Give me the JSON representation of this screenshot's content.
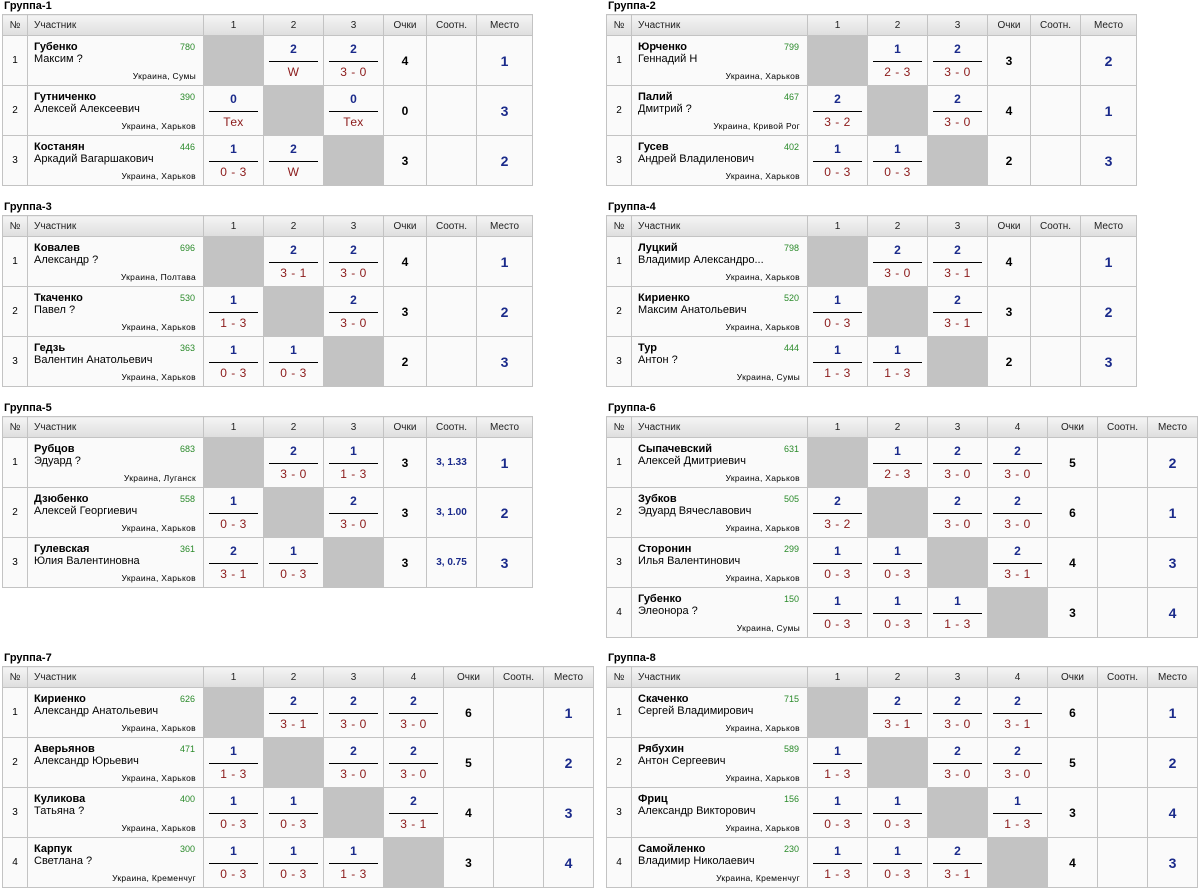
{
  "headers": {
    "num": "№",
    "participant": "Участник",
    "points": "Очки",
    "ratio": "Соотн.",
    "place": "Место"
  },
  "groups": [
    {
      "title": "Группа-1",
      "cols": [
        "1",
        "2",
        "3"
      ],
      "rows": [
        {
          "num": "1",
          "last": "Губенко",
          "first": "Максим ?",
          "rating": "780",
          "city": "Украина, Сумы",
          "results": [
            null,
            {
              "t": "2",
              "b": "W"
            },
            {
              "t": "2",
              "b": "3 - 0"
            }
          ],
          "points": "4",
          "ratio": "",
          "place": "1"
        },
        {
          "num": "2",
          "last": "Гутниченко",
          "first": "Алексей Алексеевич",
          "rating": "390",
          "city": "Украина, Харьков",
          "results": [
            {
              "t": "0",
              "b": "Тех"
            },
            null,
            {
              "t": "0",
              "b": "Тех"
            }
          ],
          "points": "0",
          "ratio": "",
          "place": "3"
        },
        {
          "num": "3",
          "last": "Костанян",
          "first": "Аркадий Вагаршакович",
          "rating": "446",
          "city": "Украина, Харьков",
          "results": [
            {
              "t": "1",
              "b": "0 - 3"
            },
            {
              "t": "2",
              "b": "W"
            },
            null
          ],
          "points": "3",
          "ratio": "",
          "place": "2"
        }
      ]
    },
    {
      "title": "Группа-2",
      "cols": [
        "1",
        "2",
        "3"
      ],
      "rows": [
        {
          "num": "1",
          "last": "Юрченко",
          "first": "Геннадий Н",
          "rating": "799",
          "city": "Украина, Харьков",
          "results": [
            null,
            {
              "t": "1",
              "b": "2 - 3"
            },
            {
              "t": "2",
              "b": "3 - 0"
            }
          ],
          "points": "3",
          "ratio": "",
          "place": "2"
        },
        {
          "num": "2",
          "last": "Палий",
          "first": "Дмитрий ?",
          "rating": "467",
          "city": "Украина, Кривой Рог",
          "results": [
            {
              "t": "2",
              "b": "3 - 2"
            },
            null,
            {
              "t": "2",
              "b": "3 - 0"
            }
          ],
          "points": "4",
          "ratio": "",
          "place": "1"
        },
        {
          "num": "3",
          "last": "Гусев",
          "first": "Андрей Владиленович",
          "rating": "402",
          "city": "Украина, Харьков",
          "results": [
            {
              "t": "1",
              "b": "0 - 3"
            },
            {
              "t": "1",
              "b": "0 - 3"
            },
            null
          ],
          "points": "2",
          "ratio": "",
          "place": "3"
        }
      ]
    },
    {
      "title": "Группа-3",
      "cols": [
        "1",
        "2",
        "3"
      ],
      "rows": [
        {
          "num": "1",
          "last": "Ковалев",
          "first": "Александр ?",
          "rating": "696",
          "city": "Украина, Полтава",
          "results": [
            null,
            {
              "t": "2",
              "b": "3 - 1"
            },
            {
              "t": "2",
              "b": "3 - 0"
            }
          ],
          "points": "4",
          "ratio": "",
          "place": "1"
        },
        {
          "num": "2",
          "last": "Ткаченко",
          "first": "Павел ?",
          "rating": "530",
          "city": "Украина, Харьков",
          "results": [
            {
              "t": "1",
              "b": "1 - 3"
            },
            null,
            {
              "t": "2",
              "b": "3 - 0"
            }
          ],
          "points": "3",
          "ratio": "",
          "place": "2"
        },
        {
          "num": "3",
          "last": "Гедзь",
          "first": "Валентин Анатольевич",
          "rating": "363",
          "city": "Украина, Харьков",
          "results": [
            {
              "t": "1",
              "b": "0 - 3"
            },
            {
              "t": "1",
              "b": "0 - 3"
            },
            null
          ],
          "points": "2",
          "ratio": "",
          "place": "3"
        }
      ]
    },
    {
      "title": "Группа-4",
      "cols": [
        "1",
        "2",
        "3"
      ],
      "rows": [
        {
          "num": "1",
          "last": "Луцкий",
          "first": "Владимир Александро...",
          "rating": "798",
          "city": "Украина, Харьков",
          "results": [
            null,
            {
              "t": "2",
              "b": "3 - 0"
            },
            {
              "t": "2",
              "b": "3 - 1"
            }
          ],
          "points": "4",
          "ratio": "",
          "place": "1"
        },
        {
          "num": "2",
          "last": "Кириенко",
          "first": "Максим Анатольевич",
          "rating": "520",
          "city": "Украина, Харьков",
          "results": [
            {
              "t": "1",
              "b": "0 - 3"
            },
            null,
            {
              "t": "2",
              "b": "3 - 1"
            }
          ],
          "points": "3",
          "ratio": "",
          "place": "2"
        },
        {
          "num": "3",
          "last": "Тур",
          "first": "Антон ?",
          "rating": "444",
          "city": "Украина, Сумы",
          "results": [
            {
              "t": "1",
              "b": "1 - 3"
            },
            {
              "t": "1",
              "b": "1 - 3"
            },
            null
          ],
          "points": "2",
          "ratio": "",
          "place": "3"
        }
      ]
    },
    {
      "title": "Группа-5",
      "cols": [
        "1",
        "2",
        "3"
      ],
      "rows": [
        {
          "num": "1",
          "last": "Рубцов",
          "first": "Эдуард ?",
          "rating": "683",
          "city": "Украина, Луганск",
          "results": [
            null,
            {
              "t": "2",
              "b": "3 - 0"
            },
            {
              "t": "1",
              "b": "1 - 3"
            }
          ],
          "points": "3",
          "ratio": "3, 1.33",
          "place": "1"
        },
        {
          "num": "2",
          "last": "Дзюбенко",
          "first": "Алексей Георгиевич",
          "rating": "558",
          "city": "Украина, Харьков",
          "results": [
            {
              "t": "1",
              "b": "0 - 3"
            },
            null,
            {
              "t": "2",
              "b": "3 - 0"
            }
          ],
          "points": "3",
          "ratio": "3, 1.00",
          "place": "2"
        },
        {
          "num": "3",
          "last": "Гулевская",
          "first": "Юлия Валентиновна",
          "rating": "361",
          "city": "Украина, Харьков",
          "results": [
            {
              "t": "2",
              "b": "3 - 1"
            },
            {
              "t": "1",
              "b": "0 - 3"
            },
            null
          ],
          "points": "3",
          "ratio": "3, 0.75",
          "place": "3"
        }
      ]
    },
    {
      "title": "Группа-6",
      "cols": [
        "1",
        "2",
        "3",
        "4"
      ],
      "rows": [
        {
          "num": "1",
          "last": "Сыпачевский",
          "first": "Алексей Дмитриевич",
          "rating": "631",
          "city": "Украина, Харьков",
          "results": [
            null,
            {
              "t": "1",
              "b": "2 - 3"
            },
            {
              "t": "2",
              "b": "3 - 0"
            },
            {
              "t": "2",
              "b": "3 - 0"
            }
          ],
          "points": "5",
          "ratio": "",
          "place": "2"
        },
        {
          "num": "2",
          "last": "Зубков",
          "first": "Эдуард Вячеславович",
          "rating": "505",
          "city": "Украина, Харьков",
          "results": [
            {
              "t": "2",
              "b": "3 - 2"
            },
            null,
            {
              "t": "2",
              "b": "3 - 0"
            },
            {
              "t": "2",
              "b": "3 - 0"
            }
          ],
          "points": "6",
          "ratio": "",
          "place": "1"
        },
        {
          "num": "3",
          "last": "Сторонин",
          "first": "Илья Валентинович",
          "rating": "299",
          "city": "Украина, Харьков",
          "results": [
            {
              "t": "1",
              "b": "0 - 3"
            },
            {
              "t": "1",
              "b": "0 - 3"
            },
            null,
            {
              "t": "2",
              "b": "3 - 1"
            }
          ],
          "points": "4",
          "ratio": "",
          "place": "3"
        },
        {
          "num": "4",
          "last": "Губенко",
          "first": "Элеонора ?",
          "rating": "150",
          "city": "Украина, Сумы",
          "results": [
            {
              "t": "1",
              "b": "0 - 3"
            },
            {
              "t": "1",
              "b": "0 - 3"
            },
            {
              "t": "1",
              "b": "1 - 3"
            },
            null
          ],
          "points": "3",
          "ratio": "",
          "place": "4"
        }
      ]
    },
    {
      "title": "Группа-7",
      "cols": [
        "1",
        "2",
        "3",
        "4"
      ],
      "rows": [
        {
          "num": "1",
          "last": "Кириенко",
          "first": "Александр Анатольевич",
          "rating": "626",
          "city": "Украина, Харьков",
          "results": [
            null,
            {
              "t": "2",
              "b": "3 - 1"
            },
            {
              "t": "2",
              "b": "3 - 0"
            },
            {
              "t": "2",
              "b": "3 - 0"
            }
          ],
          "points": "6",
          "ratio": "",
          "place": "1"
        },
        {
          "num": "2",
          "last": "Аверьянов",
          "first": "Александр Юрьевич",
          "rating": "471",
          "city": "Украина, Харьков",
          "results": [
            {
              "t": "1",
              "b": "1 - 3"
            },
            null,
            {
              "t": "2",
              "b": "3 - 0"
            },
            {
              "t": "2",
              "b": "3 - 0"
            }
          ],
          "points": "5",
          "ratio": "",
          "place": "2"
        },
        {
          "num": "3",
          "last": "Куликова",
          "first": "Татьяна ?",
          "rating": "400",
          "city": "Украина, Харьков",
          "results": [
            {
              "t": "1",
              "b": "0 - 3"
            },
            {
              "t": "1",
              "b": "0 - 3"
            },
            null,
            {
              "t": "2",
              "b": "3 - 1"
            }
          ],
          "points": "4",
          "ratio": "",
          "place": "3"
        },
        {
          "num": "4",
          "last": "Карпук",
          "first": "Светлана ?",
          "rating": "300",
          "city": "Украина, Кременчуг",
          "results": [
            {
              "t": "1",
              "b": "0 - 3"
            },
            {
              "t": "1",
              "b": "0 - 3"
            },
            {
              "t": "1",
              "b": "1 - 3"
            },
            null
          ],
          "points": "3",
          "ratio": "",
          "place": "4"
        }
      ]
    },
    {
      "title": "Группа-8",
      "cols": [
        "1",
        "2",
        "3",
        "4"
      ],
      "rows": [
        {
          "num": "1",
          "last": "Скаченко",
          "first": "Сергей Владимирович",
          "rating": "715",
          "city": "Украина, Харьков",
          "results": [
            null,
            {
              "t": "2",
              "b": "3 - 1"
            },
            {
              "t": "2",
              "b": "3 - 0"
            },
            {
              "t": "2",
              "b": "3 - 1"
            }
          ],
          "points": "6",
          "ratio": "",
          "place": "1"
        },
        {
          "num": "2",
          "last": "Рябухин",
          "first": "Антон Сергеевич",
          "rating": "589",
          "city": "Украина, Харьков",
          "results": [
            {
              "t": "1",
              "b": "1 - 3"
            },
            null,
            {
              "t": "2",
              "b": "3 - 0"
            },
            {
              "t": "2",
              "b": "3 - 0"
            }
          ],
          "points": "5",
          "ratio": "",
          "place": "2"
        },
        {
          "num": "3",
          "last": "Фриц",
          "first": "Александр Викторович",
          "rating": "156",
          "city": "Украина, Харьков",
          "results": [
            {
              "t": "1",
              "b": "0 - 3"
            },
            {
              "t": "1",
              "b": "0 - 3"
            },
            null,
            {
              "t": "1",
              "b": "1 - 3"
            }
          ],
          "points": "3",
          "ratio": "",
          "place": "4"
        },
        {
          "num": "4",
          "last": "Самойленко",
          "first": "Владимир Николаевич",
          "rating": "230",
          "city": "Украина, Кременчуг",
          "results": [
            {
              "t": "1",
              "b": "1 - 3"
            },
            {
              "t": "1",
              "b": "0 - 3"
            },
            {
              "t": "2",
              "b": "3 - 1"
            },
            null
          ],
          "points": "4",
          "ratio": "",
          "place": "3"
        }
      ]
    }
  ]
}
